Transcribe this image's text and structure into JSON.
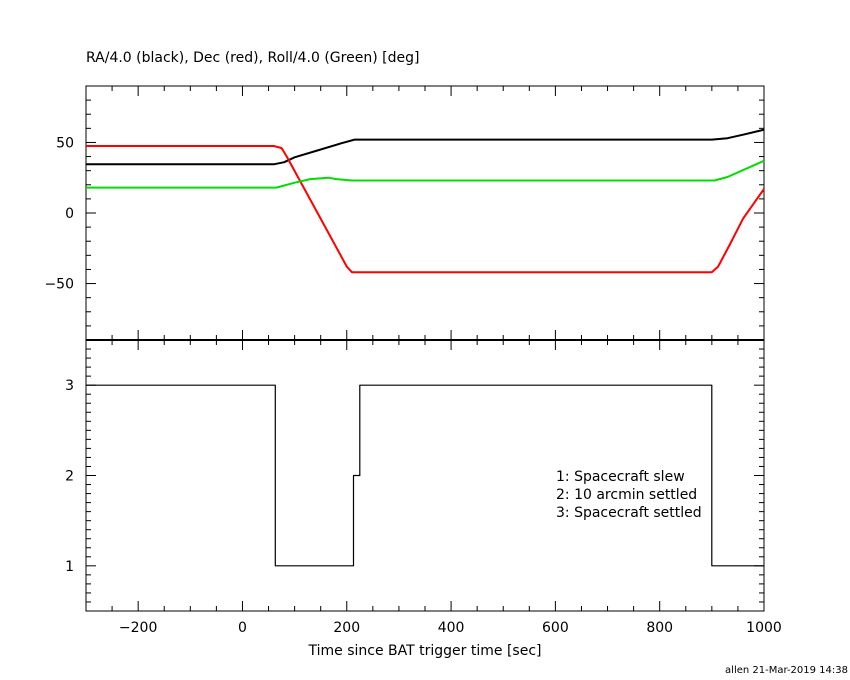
{
  "title": "RA/4.0 (black), Dec (red), Roll/4.0 (Green) [deg]",
  "xlabel": "Time since BAT trigger time [sec]",
  "footer": "allen 21-Mar-2019 14:38",
  "legend": [
    "1: Spacecraft slew",
    "2: 10 arcmin settled",
    "3: Spacecraft settled"
  ],
  "colors": {
    "ra": "#000000",
    "dec": "#ff0000",
    "roll": "#00dd00"
  },
  "chart_data": [
    {
      "type": "line",
      "title": "RA/4.0 (black), Dec (red), Roll/4.0 (Green) [deg]",
      "xlim": [
        -300,
        1000
      ],
      "ylim": [
        -90,
        90
      ],
      "x_ticks": [
        -200,
        0,
        200,
        400,
        600,
        800,
        1000
      ],
      "y_ticks": [
        50,
        0,
        -50
      ],
      "series": [
        {
          "color": "#000000",
          "x": [
            -300,
            60,
            80,
            100,
            150,
            190,
            215,
            350,
            900,
            930,
            960,
            1000
          ],
          "y": [
            34.5,
            34.5,
            36,
            39.5,
            45,
            49.5,
            52,
            52,
            52,
            53,
            55.5,
            59
          ]
        },
        {
          "color": "#ff0000",
          "x": [
            -300,
            60,
            75,
            85,
            200,
            210,
            350,
            900,
            912,
            935,
            960,
            1000
          ],
          "y": [
            47.5,
            47.5,
            46,
            40,
            -38,
            -42,
            -42,
            -42,
            -38,
            -22,
            -4,
            17
          ]
        },
        {
          "color": "#00dd00",
          "x": [
            -300,
            65,
            100,
            130,
            165,
            180,
            210,
            350,
            905,
            930,
            1000
          ],
          "y": [
            18,
            18,
            21.5,
            24,
            25,
            24,
            23,
            23,
            23,
            25.5,
            37
          ]
        }
      ]
    },
    {
      "type": "line",
      "step": true,
      "xlim": [
        -300,
        1000
      ],
      "ylim": [
        0.5,
        3.5
      ],
      "x_ticks": [
        -200,
        0,
        200,
        400,
        600,
        800,
        1000
      ],
      "y_ticks": [
        3,
        2,
        1
      ],
      "series": [
        {
          "color": "#000000",
          "x": [
            -300,
            63,
            63,
            213,
            213,
            225,
            225,
            900,
            900,
            1000
          ],
          "y": [
            3,
            3,
            1,
            1,
            2,
            2,
            3,
            3,
            1,
            1
          ]
        }
      ]
    }
  ]
}
